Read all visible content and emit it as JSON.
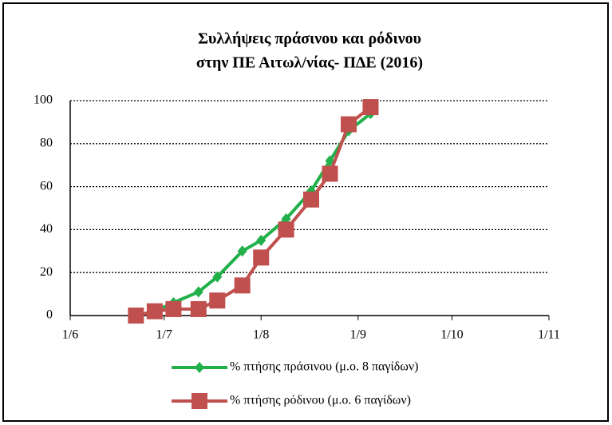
{
  "chart_data": {
    "type": "line",
    "title": [
      "Συλλήψεις πράσινου και ρόδινου",
      "στην ΠΕ Αιτωλ/νίας- ΠΔΕ (2016)"
    ],
    "x": [
      "06-22",
      "06-28",
      "07-04",
      "07-12",
      "07-18",
      "07-26",
      "08-01",
      "08-09",
      "08-17",
      "08-23",
      "08-29",
      "09-05"
    ],
    "series": [
      {
        "name": "% πτήσης πράσινου (μ.ο. 8 παγίδων)",
        "color": "#22b04a",
        "marker": "diamond",
        "values": [
          0,
          2,
          6,
          11,
          18,
          30,
          35,
          45,
          58,
          72,
          86,
          94
        ]
      },
      {
        "name": "% πτήσης ρόδινου (μ.ο. 6 παγίδων)",
        "color": "#c0504d",
        "marker": "square",
        "values": [
          0,
          2,
          3,
          3,
          7,
          14,
          27,
          40,
          54,
          66,
          89,
          97
        ]
      }
    ],
    "xlim": [
      "06-01",
      "11-01"
    ],
    "xticks": [
      {
        "value": "06-01",
        "label": "1/6"
      },
      {
        "value": "07-01",
        "label": "1/7"
      },
      {
        "value": "08-01",
        "label": "1/8"
      },
      {
        "value": "09-01",
        "label": "1/9"
      },
      {
        "value": "10-01",
        "label": "1/10"
      },
      {
        "value": "11-01",
        "label": "1/11"
      }
    ],
    "ylim": [
      0,
      100
    ],
    "yticks": [
      0,
      20,
      40,
      60,
      80,
      100
    ],
    "grid": true
  }
}
